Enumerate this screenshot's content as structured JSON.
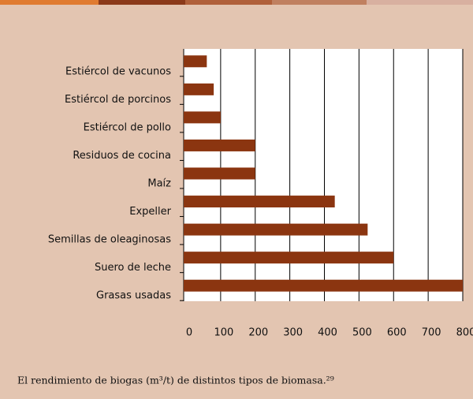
{
  "chart_data": {
    "type": "bar",
    "orientation": "horizontal",
    "categories": [
      "Estiércol de vacunos",
      "Estiércol de porcinos",
      "Estiércol de pollo",
      "Residuos de cocina",
      "Maíz",
      "Expeller",
      "Semillas de oleaginosas",
      "Suero de leche",
      "Grasas usadas"
    ],
    "values": [
      60,
      80,
      100,
      200,
      200,
      430,
      525,
      600,
      800
    ],
    "color": "#8b3510",
    "xlim": [
      0,
      800
    ],
    "xticks": [
      0,
      100,
      200,
      300,
      400,
      500,
      600,
      700,
      800
    ],
    "grid": true,
    "caption": "El rendimiento de biogas (m³/t) de distintos tipos de biomasa.²⁹"
  }
}
